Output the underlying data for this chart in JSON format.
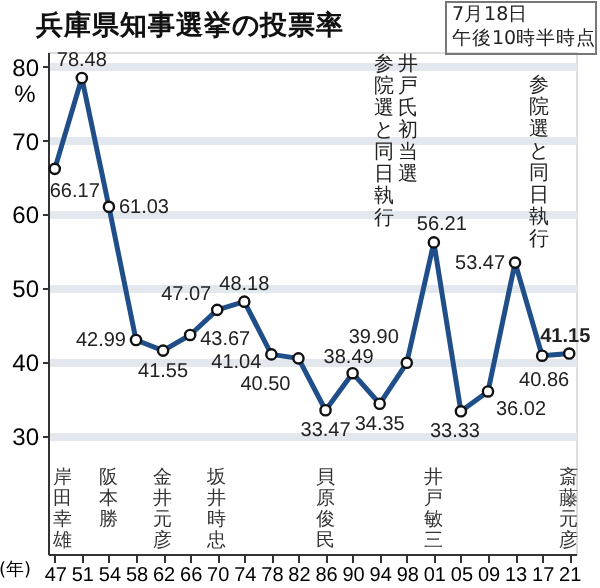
{
  "chart_data": {
    "type": "line",
    "title": "兵庫県知事選挙の投票率",
    "xlabel": "(年)",
    "ylabel": "%",
    "categories": [
      "47",
      "51",
      "54",
      "58",
      "62",
      "66",
      "70",
      "74",
      "78",
      "82",
      "86",
      "90",
      "94",
      "98",
      "01",
      "05",
      "09",
      "13",
      "17",
      "21"
    ],
    "series": [
      {
        "color": "#1f4e89",
        "values": [
          66.17,
          78.48,
          61.03,
          42.99,
          41.55,
          43.67,
          47.07,
          48.18,
          41.04,
          40.5,
          33.47,
          38.49,
          34.35,
          39.9,
          56.21,
          33.33,
          36.02,
          53.47,
          40.86,
          41.15
        ]
      }
    ],
    "value_labels": [
      "66.17",
      "78.48",
      "61.03",
      "42.99",
      "41.55",
      "43.67",
      "47.07",
      "48.18",
      "41.04",
      "40.50",
      "33.47",
      "38.49",
      "34.35",
      "39.90",
      "56.21",
      "33.33",
      "36.02",
      "53.47",
      "40.86",
      "41.15"
    ],
    "ylim": [
      14,
      82
    ],
    "yticks": [
      30,
      40,
      50,
      60,
      70,
      80
    ],
    "grid": "y",
    "marker": "circle",
    "line_style": "solid",
    "annotations": [
      "7月18日",
      "午後10時半時点",
      {
        "text": "参院選と同日執行",
        "x": "01",
        "y": 56.21
      },
      {
        "text": "井戸氏初当選",
        "x": "01",
        "y": 56.21
      },
      {
        "text": "参院選と同日執行",
        "x": "13",
        "y": 53.47
      },
      "岸田幸雄",
      "阪本勝",
      "金井元彦",
      "坂井時忠",
      "貝原俊民",
      "井戸敏三",
      "斎藤元彦"
    ]
  }
}
